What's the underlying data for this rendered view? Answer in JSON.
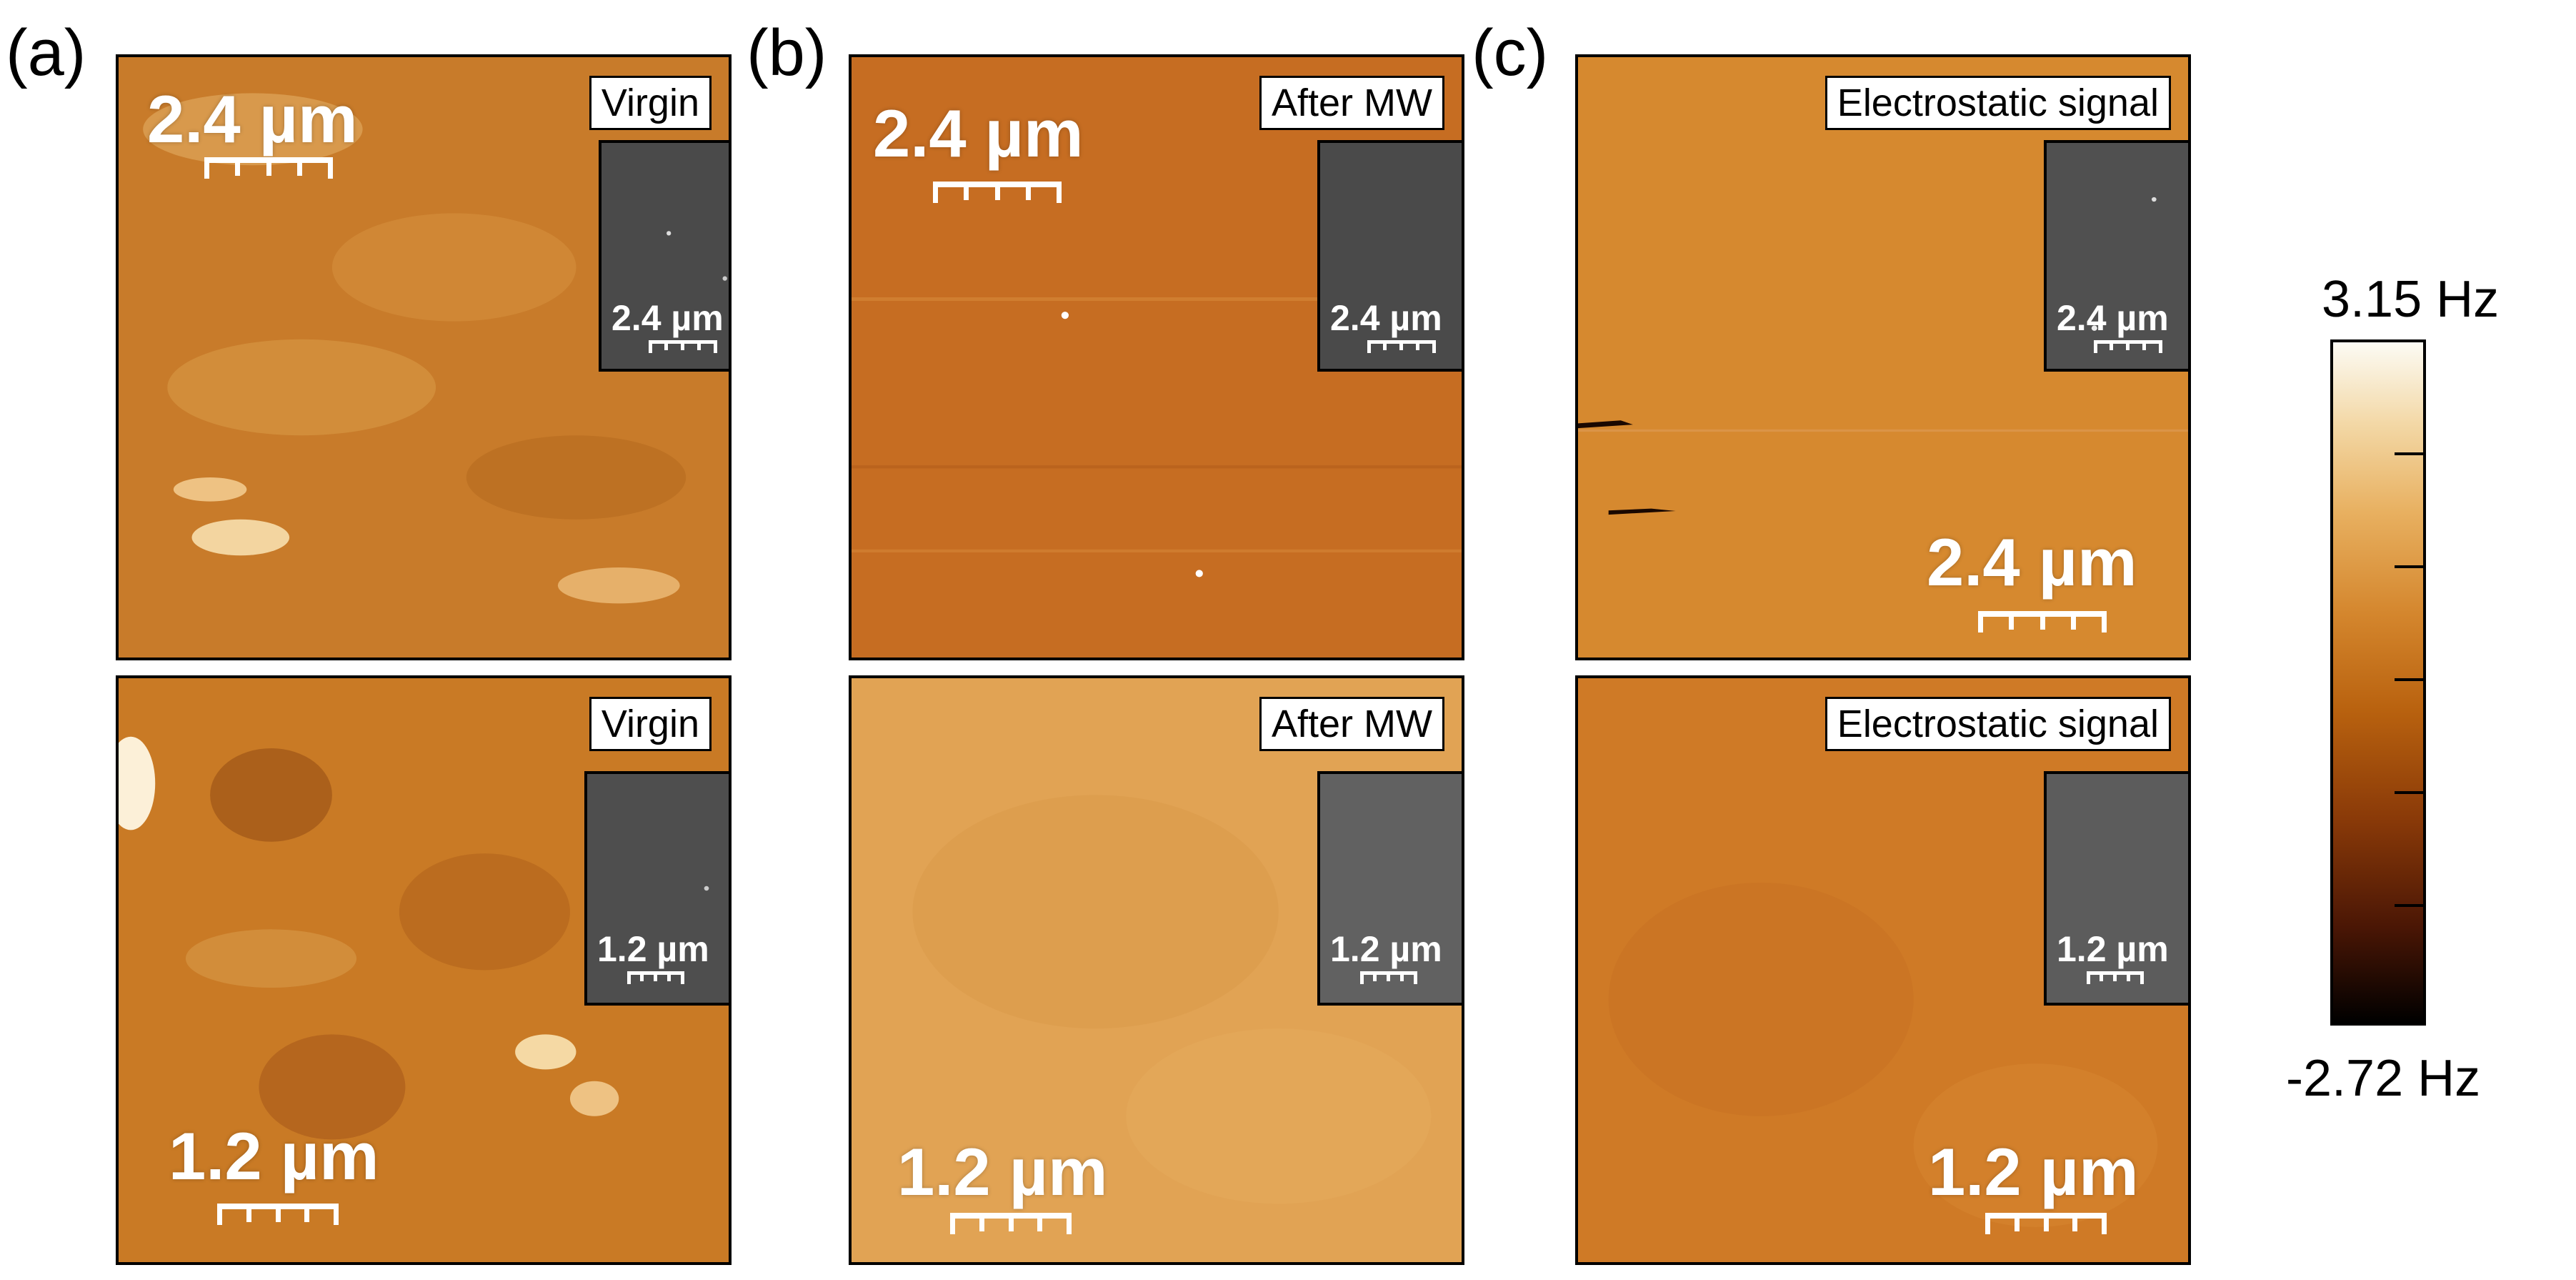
{
  "panels": [
    {
      "letter": "(a)",
      "top_label": "Virgin",
      "bottom_label": "Virgin",
      "top_scale": "2.4 µm",
      "bottom_scale": "1.2 µm",
      "top_inset_scale": "2.4 µm",
      "bottom_inset_scale": "1.2 µm"
    },
    {
      "letter": "(b)",
      "top_label": "After MW",
      "bottom_label": "After MW",
      "top_scale": "2.4 µm",
      "bottom_scale": "1.2 µm",
      "top_inset_scale": "2.4 µm",
      "bottom_inset_scale": "1.2 µm"
    },
    {
      "letter": "(c)",
      "top_label": "Electrostatic signal",
      "bottom_label": "Electrostatic signal",
      "top_scale": "2.4 µm",
      "bottom_scale": "1.2 µm",
      "top_inset_scale": "2.4 µm",
      "bottom_inset_scale": "1.2 µm"
    }
  ],
  "colorbar": {
    "max_label": "3.15 Hz",
    "min_label": "-2.72 Hz"
  },
  "colors": {
    "colormap": [
      "#000000",
      "#4a1605",
      "#8a3a08",
      "#b9620f",
      "#d4862d",
      "#e8b060",
      "#f3d8a6",
      "#fcfbf4"
    ],
    "a_top": "#c77b2a",
    "a_bottom": "#c97a25",
    "b_top": "#c66d22",
    "b_bottom": "#e1a354",
    "c_top": "#d6892f",
    "c_bottom": "#cf7a26",
    "inset_gray": "#4c4c4c"
  }
}
